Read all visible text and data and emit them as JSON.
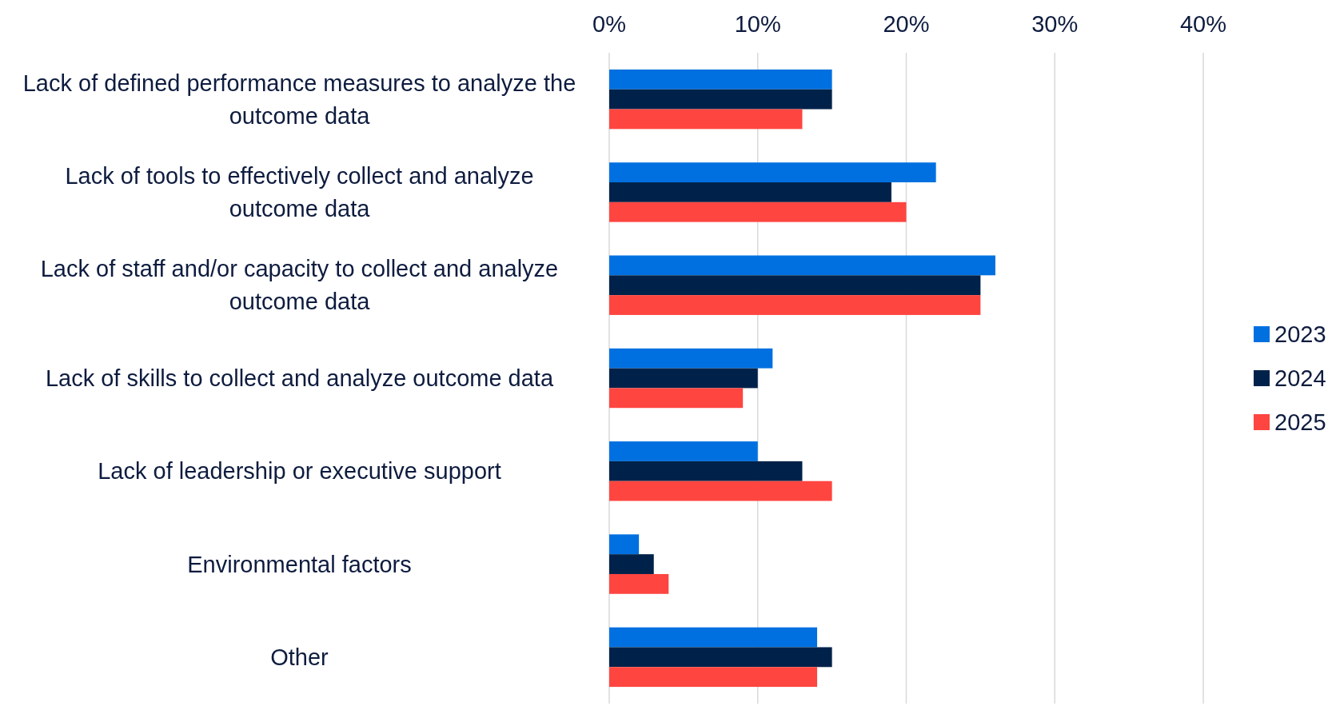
{
  "chart_data": {
    "type": "bar",
    "orientation": "horizontal",
    "categories": [
      "Lack of defined performance measures to analyze the outcome data",
      "Lack of tools to effectively collect and analyze outcome data",
      "Lack of staff and/or capacity to collect and analyze outcome data",
      "Lack of skills to collect and analyze outcome data",
      "Lack of leadership or executive support",
      "Environmental factors",
      "Other"
    ],
    "series": [
      {
        "name": "2023",
        "color": "#0070e0",
        "values": [
          15,
          22,
          26,
          11,
          10,
          2,
          14
        ]
      },
      {
        "name": "2024",
        "color": "#00224a",
        "values": [
          15,
          19,
          25,
          10,
          13,
          3,
          15
        ]
      },
      {
        "name": "2025",
        "color": "#ff4540",
        "values": [
          13,
          20,
          25,
          9,
          15,
          4,
          14
        ]
      }
    ],
    "xlim": [
      0,
      40
    ],
    "xticks": [
      {
        "value": 0,
        "label": "0%"
      },
      {
        "value": 10,
        "label": "10%"
      },
      {
        "value": 20,
        "label": "20%"
      },
      {
        "value": 30,
        "label": "30%"
      },
      {
        "value": 40,
        "label": "40%"
      }
    ],
    "grid": "x",
    "legend": "right"
  }
}
